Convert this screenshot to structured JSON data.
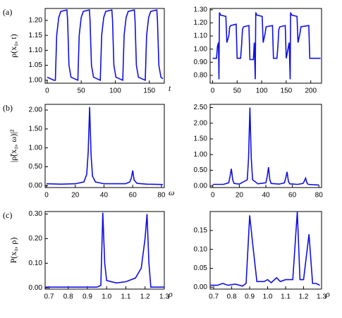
{
  "chart_data": [
    {
      "type": "line",
      "label": "(a)",
      "ylabel": "ρ(x₀, t)",
      "xlabel": "t",
      "color": "#1010e0",
      "x": [
        0,
        10,
        12,
        14,
        17,
        20,
        29,
        30,
        32,
        35,
        45,
        47,
        50,
        53,
        62,
        63,
        65,
        68,
        78,
        80,
        83,
        86,
        95,
        96,
        98,
        101,
        111,
        113,
        116,
        119,
        128,
        129,
        131,
        134,
        144,
        146,
        149,
        152,
        161,
        162,
        164,
        167,
        170
      ],
      "values": [
        1.01,
        1.0,
        1.0,
        1.15,
        1.21,
        1.23,
        1.235,
        1.2,
        1.05,
        1.01,
        1.0,
        1.15,
        1.21,
        1.23,
        1.235,
        1.2,
        1.05,
        1.01,
        1.0,
        1.15,
        1.21,
        1.23,
        1.235,
        1.2,
        1.05,
        1.01,
        1.0,
        1.15,
        1.21,
        1.23,
        1.235,
        1.2,
        1.05,
        1.01,
        1.0,
        1.15,
        1.21,
        1.23,
        1.235,
        1.2,
        1.05,
        1.01,
        1.005
      ],
      "xlim": [
        -3,
        172
      ],
      "ylim": [
        0.99,
        1.24
      ],
      "xticks": [
        0,
        50,
        100,
        150
      ],
      "yticks": [
        {
          "value": 1.0,
          "label": "1.00"
        },
        {
          "value": 1.05,
          "label": "1.05"
        },
        {
          "value": 1.1,
          "label": "1.10"
        },
        {
          "value": 1.15,
          "label": "1.15"
        },
        {
          "value": 1.2,
          "label": "1.20"
        }
      ]
    },
    {
      "type": "line",
      "color": "#1010e0",
      "x": [
        0,
        8,
        10,
        12,
        13,
        14,
        16,
        27,
        29,
        33,
        35,
        37,
        48,
        50,
        57,
        59,
        61,
        63,
        74,
        76,
        83,
        85,
        87,
        88,
        90,
        101,
        103,
        107,
        109,
        122,
        124,
        131,
        133,
        135,
        137,
        148,
        150,
        156,
        158,
        159,
        161,
        172,
        174,
        178,
        180,
        196,
        198,
        210,
        220
      ],
      "values": [
        0.93,
        0.93,
        1.02,
        1.05,
        0.77,
        1.28,
        1.26,
        1.25,
        1.05,
        1.1,
        1.17,
        1.18,
        1.19,
        0.93,
        0.93,
        1.02,
        1.15,
        1.17,
        1.18,
        0.92,
        0.92,
        1.05,
        0.77,
        1.28,
        1.26,
        1.25,
        1.05,
        1.12,
        1.17,
        1.18,
        0.93,
        0.93,
        1.02,
        1.15,
        1.17,
        1.18,
        0.93,
        1.05,
        0.77,
        1.28,
        1.26,
        1.25,
        1.05,
        1.12,
        1.17,
        1.18,
        0.93,
        0.93,
        0.93
      ],
      "xlim": [
        -5,
        222
      ],
      "ylim": [
        0.74,
        1.31
      ],
      "xticks": [
        0,
        50,
        100,
        150,
        200
      ],
      "yticks": [
        {
          "value": 0.8,
          "label": "0.80"
        },
        {
          "value": 0.9,
          "label": "0.90"
        },
        {
          "value": 1.0,
          "label": "1.00"
        },
        {
          "value": 1.1,
          "label": "1.10"
        },
        {
          "value": 1.2,
          "label": "1.20"
        },
        {
          "value": 1.3,
          "label": "1.30"
        }
      ]
    },
    {
      "type": "line",
      "label": "(b)",
      "ylabel": "|ρ̃(x₀, ω)|²",
      "xlabel": "ω",
      "color": "#1010e0",
      "x": [
        0,
        10,
        20,
        26,
        28,
        29,
        30,
        31,
        32,
        34,
        40,
        55,
        58,
        59,
        60,
        61,
        63,
        70,
        81
      ],
      "values": [
        0.05,
        0.04,
        0.05,
        0.1,
        0.3,
        0.9,
        2.08,
        0.8,
        0.25,
        0.1,
        0.05,
        0.05,
        0.1,
        0.2,
        0.4,
        0.15,
        0.06,
        0.04,
        0.03
      ],
      "xlim": [
        -1,
        82
      ],
      "ylim": [
        -0.05,
        2.15
      ],
      "xticks": [
        0,
        20,
        40,
        60,
        80
      ],
      "yticks": [
        {
          "value": 0,
          "label": "0.00"
        },
        {
          "value": 0.5,
          "label": "0.50"
        },
        {
          "value": 1,
          "label": "1.00"
        },
        {
          "value": 1.5,
          "label": "1.50"
        },
        {
          "value": 2,
          "label": "2.00"
        }
      ]
    },
    {
      "type": "line",
      "color": "#1010e0",
      "x": [
        0,
        8,
        12,
        13,
        14,
        15,
        16,
        20,
        26,
        27,
        28,
        29,
        30,
        34,
        40,
        41,
        42,
        43,
        44,
        50,
        54,
        55,
        56,
        57,
        58,
        64,
        68,
        69,
        70,
        71,
        72,
        80
      ],
      "values": [
        0.05,
        0.05,
        0.1,
        0.3,
        0.55,
        0.2,
        0.08,
        0.06,
        0.2,
        0.9,
        2.5,
        0.9,
        0.2,
        0.07,
        0.1,
        0.3,
        0.6,
        0.2,
        0.08,
        0.06,
        0.1,
        0.25,
        0.45,
        0.15,
        0.07,
        0.05,
        0.08,
        0.15,
        0.25,
        0.1,
        0.05,
        0.03
      ],
      "xlim": [
        -2,
        82
      ],
      "ylim": [
        -0.05,
        2.6
      ],
      "xticks": [
        0,
        20,
        40,
        60,
        80
      ],
      "yticks": [
        {
          "value": 0,
          "label": "0.00"
        },
        {
          "value": 0.5,
          "label": "0.50"
        },
        {
          "value": 1,
          "label": "1.00"
        },
        {
          "value": 1.5,
          "label": "1.50"
        },
        {
          "value": 2,
          "label": "2.00"
        },
        {
          "value": 2.5,
          "label": "2.50"
        }
      ]
    },
    {
      "type": "line",
      "label": "(c)",
      "ylabel": "P(x₀, ρ)",
      "xlabel": "ρ",
      "color": "#1010e0",
      "x": [
        0.68,
        0.95,
        0.97,
        0.98,
        0.99,
        1.0,
        1.05,
        1.1,
        1.15,
        1.18,
        1.2,
        1.21,
        1.22,
        1.23,
        1.3
      ],
      "values": [
        0.003,
        0.003,
        0.01,
        0.305,
        0.1,
        0.03,
        0.02,
        0.025,
        0.04,
        0.08,
        0.2,
        0.3,
        0.1,
        0.003,
        0.003
      ],
      "xlim": [
        0.68,
        1.3
      ],
      "ylim": [
        -0.005,
        0.31
      ],
      "xticks": [
        0.7,
        0.8,
        0.9,
        {
          "value": 1,
          "label": "1.0"
        },
        1.1,
        1.2,
        1.3
      ],
      "yticks": [
        {
          "value": 0,
          "label": "0.00"
        },
        {
          "value": 0.1,
          "label": "0.10"
        },
        {
          "value": 0.2,
          "label": "0.20"
        },
        {
          "value": 0.3,
          "label": "0.30"
        }
      ]
    },
    {
      "type": "line",
      "xlabel": "ρ",
      "color": "#1010e0",
      "x": [
        0.68,
        0.72,
        0.75,
        0.78,
        0.82,
        0.86,
        0.88,
        0.9,
        0.92,
        0.94,
        0.98,
        1.0,
        1.02,
        1.05,
        1.07,
        1.1,
        1.14,
        1.165,
        1.18,
        1.2,
        1.23,
        1.25,
        1.27,
        1.29
      ],
      "values": [
        0.005,
        0.005,
        0.01,
        0.005,
        0.008,
        0.003,
        0.01,
        0.19,
        0.1,
        0.015,
        0.015,
        0.02,
        0.012,
        0.025,
        0.015,
        0.02,
        0.02,
        0.2,
        0.02,
        0.02,
        0.14,
        0.01,
        0.01,
        0.005
      ],
      "xlim": [
        0.68,
        1.3
      ],
      "ylim": [
        -0.005,
        0.2
      ],
      "xticks": [
        0.7,
        0.8,
        0.9,
        {
          "value": 1,
          "label": "1.0"
        },
        1.1,
        1.2,
        1.3
      ],
      "yticks": [
        {
          "value": 0,
          "label": "0.00"
        },
        {
          "value": 0.05,
          "label": "0.05"
        },
        {
          "value": 0.1,
          "label": "0.10"
        },
        {
          "value": 0.15,
          "label": "0.15"
        }
      ]
    }
  ]
}
